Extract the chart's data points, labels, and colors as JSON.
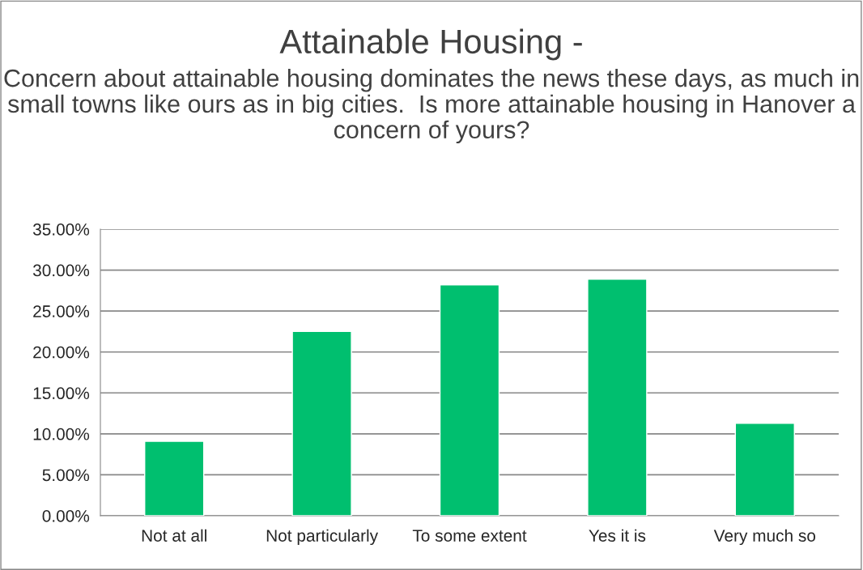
{
  "chart_data": {
    "type": "bar",
    "title": "Attainable Housing -",
    "subtitle": "Concern about attainable housing dominates the news these days, as much in small towns like ours as in big cities.  Is more attainable housing in Hanover a concern of yours?",
    "categories": [
      "Not at all",
      "Not particularly",
      "To some extent",
      "Yes it is",
      "Very much so"
    ],
    "values": [
      9.1,
      22.5,
      28.2,
      28.9,
      11.3
    ],
    "color": "#00bf6f",
    "ylim": [
      0,
      35
    ],
    "yticks": [
      {
        "value": 0,
        "label": "0.00%"
      },
      {
        "value": 5,
        "label": "5.00%"
      },
      {
        "value": 10,
        "label": "10.00%"
      },
      {
        "value": 15,
        "label": "15.00%"
      },
      {
        "value": 20,
        "label": "20.00%"
      },
      {
        "value": 25,
        "label": "25.00%"
      },
      {
        "value": 30,
        "label": "30.00%"
      },
      {
        "value": 35,
        "label": "35.00%"
      }
    ],
    "grid": "y",
    "legend": false
  }
}
